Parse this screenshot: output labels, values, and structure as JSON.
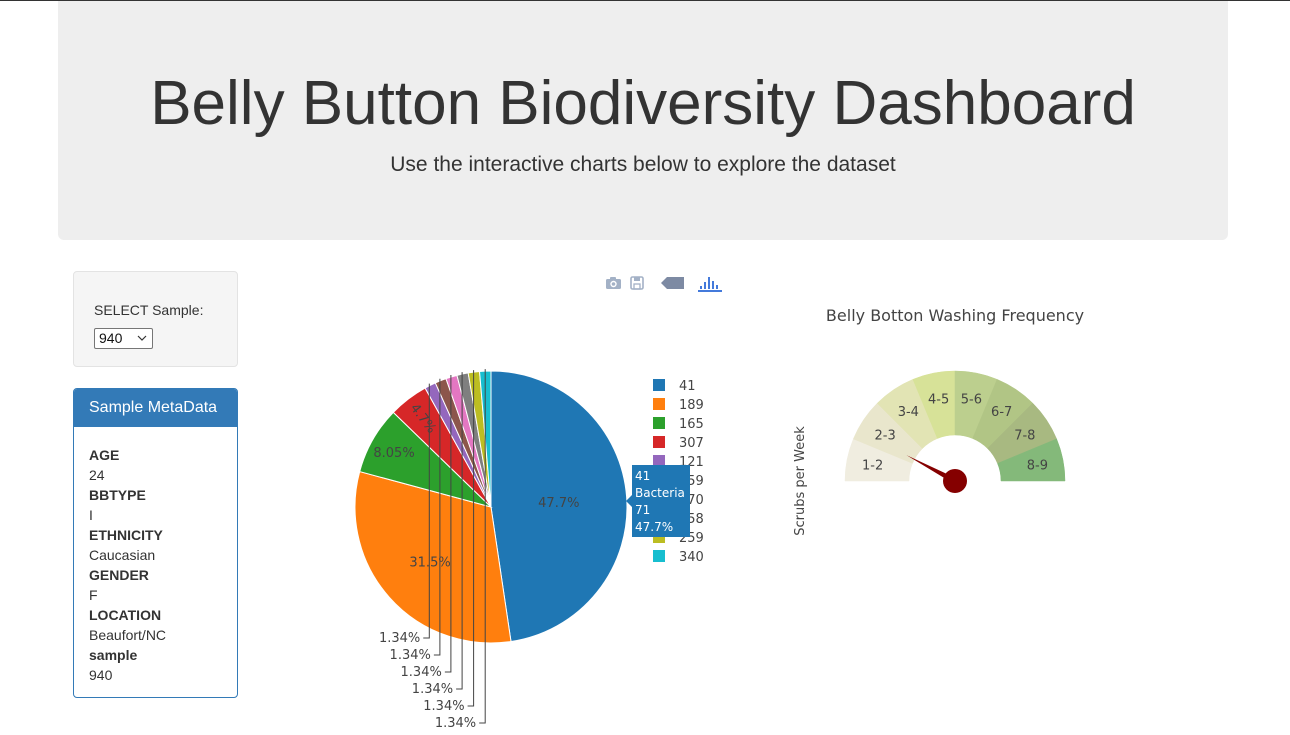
{
  "header": {
    "title": "Belly Button Biodiversity Dashboard",
    "subtitle": "Use the interactive charts below to explore the dataset"
  },
  "selector": {
    "label": "SELECT Sample:",
    "value": "940"
  },
  "metadata": {
    "title": "Sample MetaData",
    "fields": [
      {
        "key": "AGE",
        "value": "24"
      },
      {
        "key": "BBTYPE",
        "value": "I"
      },
      {
        "key": "ETHNICITY",
        "value": "Caucasian"
      },
      {
        "key": "GENDER",
        "value": "F"
      },
      {
        "key": "LOCATION",
        "value": "Beaufort/NC"
      },
      {
        "key": "sample",
        "value": "940"
      }
    ]
  },
  "modebar": {
    "icons": [
      "camera-icon",
      "save-icon",
      "tag-icon",
      "plotly-logo-icon"
    ]
  },
  "chart_data": [
    {
      "type": "pie",
      "labels": [
        "41",
        "189",
        "165",
        "307",
        "121",
        "159",
        "170",
        "258",
        "259",
        "340"
      ],
      "values": [
        71,
        47,
        12,
        7,
        2,
        2,
        2,
        2,
        2,
        2
      ],
      "percent_labels": [
        "47.7%",
        "31.5%",
        "8.05%",
        "4.7%",
        "1.34%",
        "1.34%",
        "1.34%",
        "1.34%",
        "1.34%",
        "1.34%"
      ],
      "colors": [
        "#1f77b4",
        "#ff7f0e",
        "#2ca02c",
        "#d62728",
        "#9467bd",
        "#8c564b",
        "#e377c2",
        "#7f7f7f",
        "#bcbd22",
        "#17becf"
      ],
      "legend_position": "right",
      "hover": {
        "label": "41",
        "name": "Bacteria",
        "value": "71",
        "percent": "47.7%"
      }
    },
    {
      "type": "gauge",
      "title": "Belly Botton Washing Frequency",
      "ylabel": "Scrubs per Week",
      "segments": [
        "1-2",
        "2-3",
        "3-4",
        "4-5",
        "5-6",
        "6-7",
        "7-8",
        "8-9"
      ],
      "segment_colors": [
        "#f0ede0",
        "#e9e6cc",
        "#e2e4b4",
        "#d7e298",
        "#bccf8e",
        "#b1c585",
        "#a8b981",
        "#84b97a"
      ],
      "range": [
        0,
        9
      ],
      "value": 1.4,
      "needle_color": "#850000"
    }
  ]
}
